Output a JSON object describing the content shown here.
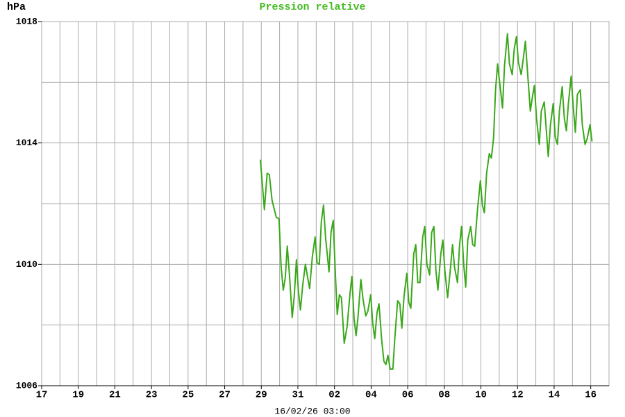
{
  "chart_data": {
    "type": "line",
    "title": "Pression relative",
    "y_label": "hPa",
    "x_label": "16/02/26 03:00",
    "xlim": [
      0,
      31
    ],
    "xticks": [
      {
        "value": 0,
        "label": "17"
      },
      {
        "value": 2,
        "label": "19"
      },
      {
        "value": 4,
        "label": "21"
      },
      {
        "value": 6,
        "label": "23"
      },
      {
        "value": 8,
        "label": "25"
      },
      {
        "value": 10,
        "label": "27"
      },
      {
        "value": 12,
        "label": "29"
      },
      {
        "value": 14,
        "label": "31"
      },
      {
        "value": 16,
        "label": "02"
      },
      {
        "value": 18,
        "label": "04"
      },
      {
        "value": 20,
        "label": "06"
      },
      {
        "value": 22,
        "label": "08"
      },
      {
        "value": 24,
        "label": "10"
      },
      {
        "value": 26,
        "label": "12"
      },
      {
        "value": 28,
        "label": "14"
      },
      {
        "value": 30,
        "label": "16"
      }
    ],
    "xminorticks": [
      1,
      3,
      5,
      7,
      9,
      11,
      13,
      15,
      17,
      19,
      21,
      23,
      25,
      27,
      29
    ],
    "ylim": [
      1006,
      1018
    ],
    "yticks": [
      1006,
      1010,
      1014,
      1018
    ],
    "yminorticks": [
      1008,
      1012,
      1016
    ],
    "grid": true,
    "color": "#3aa81a",
    "title_color": "#44bb22",
    "x": [
      11.95,
      12.17,
      12.32,
      12.44,
      12.59,
      12.82,
      12.97,
      13.08,
      13.2,
      13.31,
      13.42,
      13.54,
      13.69,
      13.8,
      13.92,
      14.03,
      14.14,
      14.26,
      14.41,
      14.64,
      14.79,
      14.94,
      15.05,
      15.17,
      15.28,
      15.4,
      15.51,
      15.7,
      15.81,
      15.93,
      16.04,
      16.15,
      16.27,
      16.38,
      16.53,
      16.69,
      16.84,
      16.95,
      17.07,
      17.18,
      17.29,
      17.44,
      17.56,
      17.71,
      17.82,
      17.98,
      18.09,
      18.2,
      18.32,
      18.43,
      18.58,
      18.7,
      18.81,
      18.92,
      19.04,
      19.19,
      19.3,
      19.45,
      19.57,
      19.68,
      19.8,
      19.95,
      20.06,
      20.17,
      20.33,
      20.44,
      20.55,
      20.67,
      20.82,
      20.93,
      21.05,
      21.2,
      21.31,
      21.43,
      21.54,
      21.65,
      21.81,
      21.92,
      22.03,
      22.18,
      22.34,
      22.45,
      22.56,
      22.72,
      22.83,
      22.94,
      23.06,
      23.17,
      23.28,
      23.44,
      23.55,
      23.66,
      23.82,
      23.97,
      24.08,
      24.19,
      24.31,
      24.46,
      24.57,
      24.69,
      24.8,
      24.91,
      25.07,
      25.18,
      25.29,
      25.45,
      25.56,
      25.71,
      25.82,
      25.94,
      26.05,
      26.2,
      26.32,
      26.43,
      26.54,
      26.7,
      26.81,
      26.92,
      27.04,
      27.19,
      27.3,
      27.46,
      27.57,
      27.68,
      27.8,
      27.95,
      28.06,
      28.18,
      28.29,
      28.44,
      28.56,
      28.67,
      28.78,
      28.93,
      29.05,
      29.16,
      29.27,
      29.43,
      29.54,
      29.69,
      29.81,
      29.96,
      30.07
    ],
    "values": [
      1013.45,
      1011.8,
      1013.0,
      1012.95,
      1012.1,
      1011.55,
      1011.5,
      1009.95,
      1009.15,
      1009.55,
      1010.6,
      1009.65,
      1008.25,
      1008.95,
      1010.15,
      1009.1,
      1008.5,
      1009.3,
      1010.0,
      1009.2,
      1010.25,
      1010.9,
      1010.05,
      1010.0,
      1011.4,
      1011.95,
      1010.9,
      1009.75,
      1011.05,
      1011.45,
      1009.8,
      1008.35,
      1009.0,
      1008.9,
      1007.4,
      1007.95,
      1009.0,
      1009.6,
      1008.2,
      1007.65,
      1008.3,
      1009.5,
      1008.85,
      1008.3,
      1008.45,
      1009.0,
      1008.05,
      1007.55,
      1008.4,
      1008.7,
      1007.5,
      1006.8,
      1006.7,
      1007.0,
      1006.55,
      1006.55,
      1007.6,
      1008.8,
      1008.7,
      1007.9,
      1008.95,
      1009.7,
      1008.75,
      1008.55,
      1010.35,
      1010.65,
      1009.4,
      1009.4,
      1010.9,
      1011.25,
      1010.0,
      1009.65,
      1011.05,
      1011.25,
      1009.8,
      1009.15,
      1010.35,
      1010.8,
      1009.8,
      1008.9,
      1009.9,
      1010.65,
      1009.9,
      1009.4,
      1010.6,
      1011.25,
      1010.0,
      1009.25,
      1010.8,
      1011.25,
      1010.65,
      1010.6,
      1011.85,
      1012.75,
      1011.95,
      1011.7,
      1013.0,
      1013.65,
      1013.5,
      1014.15,
      1015.75,
      1016.6,
      1015.75,
      1015.15,
      1016.55,
      1017.6,
      1016.6,
      1016.25,
      1017.1,
      1017.5,
      1016.65,
      1016.25,
      1016.8,
      1017.35,
      1016.4,
      1015.05,
      1015.5,
      1015.9,
      1014.8,
      1013.95,
      1015.05,
      1015.35,
      1014.45,
      1013.55,
      1014.6,
      1015.3,
      1014.2,
      1013.95,
      1015.05,
      1015.85,
      1014.8,
      1014.4,
      1015.3,
      1016.2,
      1015.15,
      1014.35,
      1015.6,
      1015.75,
      1014.6,
      1013.95,
      1014.15,
      1014.6,
      1014.05
    ]
  }
}
